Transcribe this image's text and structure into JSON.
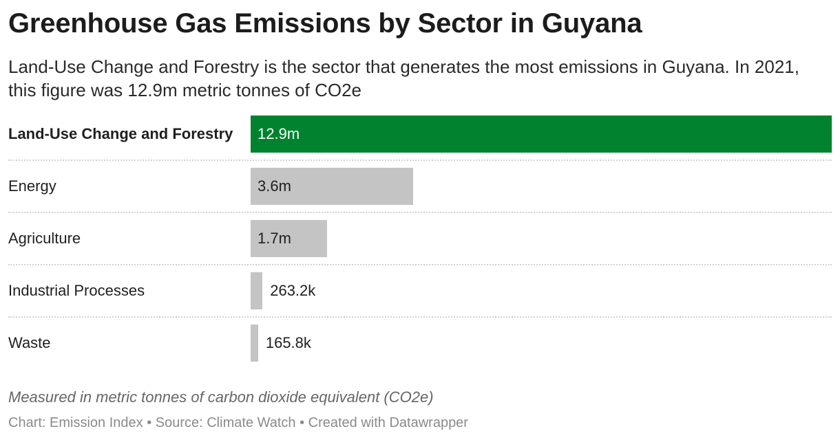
{
  "title": "Greenhouse Gas Emissions by Sector in Guyana",
  "subtitle": "Land-Use Change and Forestry is the sector that generates the most emissions in Guyana. In 2021, this figure was 12.9m metric tonnes of CO2e",
  "notes": "Measured in metric tonnes of carbon dioxide equivalent (CO2e)",
  "source": "Chart: Emission Index • Source: Climate Watch • Created with Datawrapper",
  "colors": {
    "highlight": "#00822e",
    "default_bar": "#c4c4c4",
    "divider": "#d2d2d2"
  },
  "chart_data": {
    "type": "bar",
    "orientation": "horizontal",
    "title": "Greenhouse Gas Emissions by Sector in Guyana",
    "categories": [
      "Land-Use Change and Forestry",
      "Energy",
      "Agriculture",
      "Industrial Processes",
      "Waste"
    ],
    "values": [
      12900000,
      3600000,
      1700000,
      263200,
      165800
    ],
    "value_labels": [
      "12.9m",
      "3.6m",
      "1.7m",
      "263.2k",
      "165.8k"
    ],
    "highlighted_category": "Land-Use Change and Forestry",
    "xlim": [
      0,
      12900000
    ],
    "grid": false,
    "legend": "none"
  }
}
